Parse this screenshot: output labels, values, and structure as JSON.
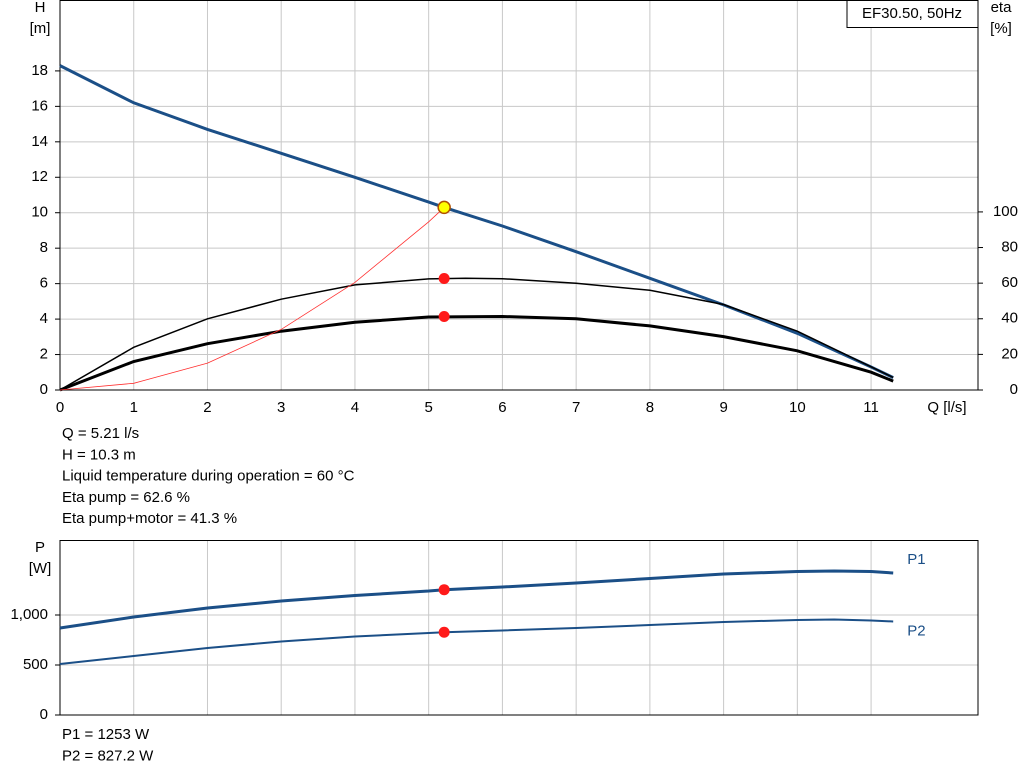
{
  "chart_data": [
    {
      "type": "line",
      "legend_title": "EF30.50, 50Hz",
      "x_label": "Q [l/s]",
      "y_label": "H",
      "y_unit": "[m]",
      "y2_label": "eta",
      "y2_unit": "[%]",
      "xlim": [
        0,
        12.45
      ],
      "ylim": [
        0,
        22
      ],
      "y2lim": [
        0,
        219
      ],
      "grid": true,
      "xticks": [
        0,
        1,
        2,
        3,
        4,
        5,
        6,
        7,
        8,
        9,
        10,
        11
      ],
      "yticks": [
        0,
        2,
        4,
        6,
        8,
        10,
        12,
        14,
        16,
        18
      ],
      "y2ticks": [
        0,
        20,
        40,
        60,
        80,
        100
      ],
      "series": [
        {
          "color": "#1b4f87",
          "width": 3,
          "axis": "y",
          "x": [
            0,
            1,
            2,
            3,
            4,
            5,
            5.21,
            6,
            7,
            8,
            9,
            10,
            11,
            11.3
          ],
          "values": [
            18.3,
            16.2,
            14.7,
            13.35,
            12.0,
            10.6,
            10.3,
            9.25,
            7.8,
            6.3,
            4.8,
            3.2,
            1.3,
            0.7
          ]
        },
        {
          "color": "#000000",
          "width": 1.5,
          "axis": "y2",
          "x": [
            0,
            1,
            2,
            3,
            4,
            5,
            5.5,
            6,
            7,
            8,
            9,
            10,
            11,
            11.3
          ],
          "values": [
            0,
            24,
            40,
            51,
            59,
            62.4,
            62.8,
            62.5,
            60,
            56,
            48,
            33,
            13,
            7
          ]
        },
        {
          "color": "#000000",
          "width": 3,
          "axis": "y2",
          "x": [
            0,
            1,
            2,
            3,
            4,
            5,
            6,
            7,
            8,
            9,
            10,
            11,
            11.3
          ],
          "values": [
            0,
            16,
            26,
            33,
            38,
            41,
            41.3,
            40,
            36,
            30,
            22,
            10,
            5
          ]
        },
        {
          "color": "#ff3030",
          "width": 0.8,
          "axis": "y",
          "x": [
            0,
            1,
            2,
            3,
            4,
            5,
            5.21
          ],
          "values": [
            0,
            0.38,
            1.52,
            3.42,
            6.07,
            9.49,
            10.3
          ]
        }
      ],
      "points": [
        {
          "x": 5.21,
          "y": 10.3,
          "axis": "y",
          "color": "#ffff00"
        },
        {
          "x": 5.21,
          "y": 62.6,
          "axis": "y2",
          "color": "#ff1a1a"
        },
        {
          "x": 5.21,
          "y": 41.3,
          "axis": "y2",
          "color": "#ff1a1a"
        }
      ],
      "annotations": [
        "Q = 5.21 l/s",
        "H = 10.3 m",
        "Liquid temperature during operation = 60 °C",
        "Eta pump = 62.6 %",
        "Eta pump+motor = 41.3 %"
      ]
    },
    {
      "type": "line",
      "y_label": "P",
      "y_unit": "[W]",
      "xlim": [
        0,
        12.45
      ],
      "ylim": [
        0,
        1750
      ],
      "grid": true,
      "xticks": [
        0,
        1,
        2,
        3,
        4,
        5,
        6,
        7,
        8,
        9,
        10,
        11
      ],
      "yticks": [
        0,
        500,
        {
          "value": 1000,
          "label": "1,000"
        }
      ],
      "series": [
        {
          "name": "P1",
          "color": "#1b4f87",
          "width": 3,
          "axis": "y",
          "x": [
            0,
            1,
            2,
            3,
            4,
            5,
            5.21,
            6,
            7,
            8,
            9,
            10,
            10.5,
            11,
            11.3
          ],
          "values": [
            870,
            980,
            1070,
            1140,
            1195,
            1240,
            1253,
            1280,
            1320,
            1365,
            1410,
            1435,
            1440,
            1435,
            1420
          ]
        },
        {
          "name": "P2",
          "color": "#1b4f87",
          "width": 2,
          "axis": "y",
          "x": [
            0,
            1,
            2,
            3,
            4,
            5,
            5.21,
            6,
            7,
            8,
            9,
            10,
            10.5,
            11,
            11.3
          ],
          "values": [
            510,
            590,
            670,
            735,
            785,
            820,
            827.2,
            845,
            870,
            900,
            930,
            950,
            955,
            945,
            935
          ]
        }
      ],
      "points": [
        {
          "x": 5.21,
          "y": 1253,
          "axis": "y",
          "color": "#ff1a1a"
        },
        {
          "x": 5.21,
          "y": 827.2,
          "axis": "y",
          "color": "#ff1a1a"
        }
      ],
      "annotations": [
        "P1 = 1253 W",
        "P2 = 827.2 W"
      ]
    }
  ]
}
